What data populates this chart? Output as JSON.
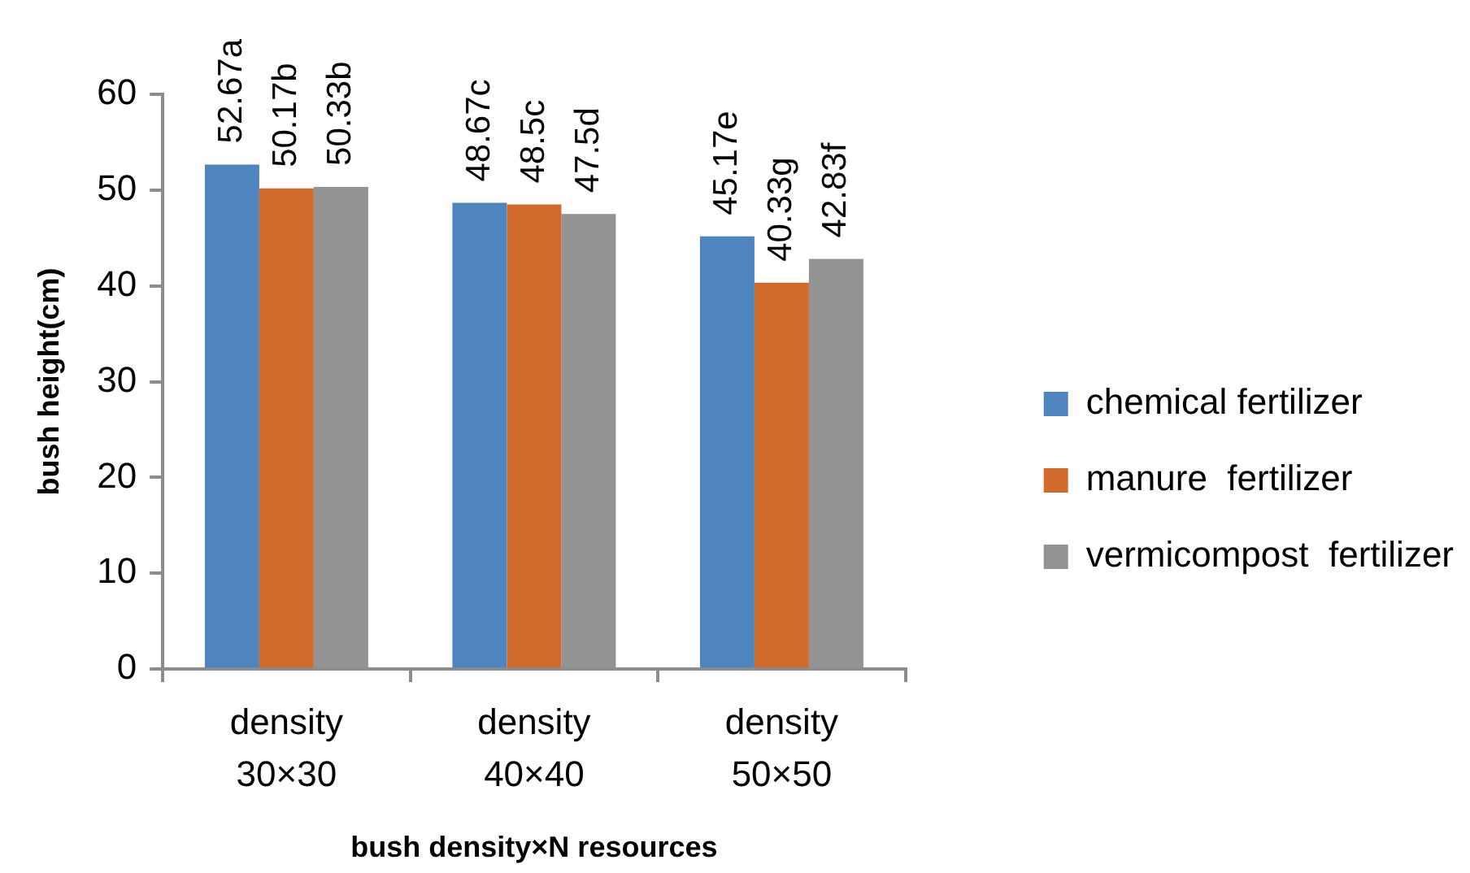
{
  "chart_data": {
    "type": "bar",
    "xlabel": "bush density×N resources",
    "ylabel": "bush height(cm)",
    "categories": [
      "density\n30×30",
      "density\n40×40",
      "density\n50×50"
    ],
    "series": [
      {
        "name": "chemical fertilizer",
        "color": "#4f85be",
        "values": [
          52.67,
          48.67,
          45.17
        ],
        "value_labels": [
          "52.67a",
          "48.67c",
          "45.17e"
        ]
      },
      {
        "name": "manure  fertilizer",
        "color": "#d16b2b",
        "values": [
          50.17,
          48.5,
          40.33
        ],
        "value_labels": [
          "50.17b",
          "48.5c",
          "40.33g"
        ]
      },
      {
        "name": "vermicompost  fertilizer",
        "color": "#939393",
        "values": [
          50.33,
          47.5,
          42.83
        ],
        "value_labels": [
          "50.33b",
          "47.5d",
          "42.83f"
        ]
      }
    ],
    "ylim": [
      0,
      60
    ],
    "yticks": [
      0,
      10,
      20,
      30,
      40,
      50,
      60
    ],
    "legend": "right"
  }
}
